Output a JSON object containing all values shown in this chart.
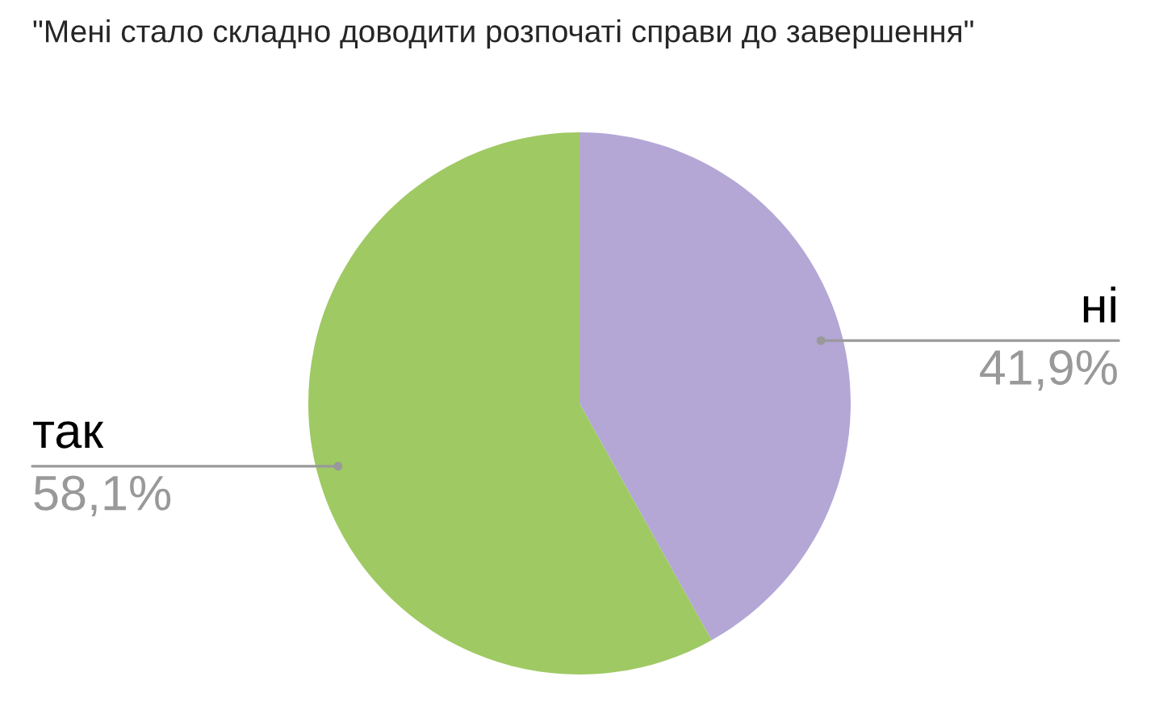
{
  "chart_data": {
    "type": "pie",
    "title": "\"Мені стало складно доводити розпочаті справи до завершення\"",
    "categories": [
      "ні",
      "так"
    ],
    "values": [
      41.9,
      58.1
    ],
    "colors": [
      "#b4a7d6",
      "#9fc963"
    ],
    "value_labels": [
      "41,9%",
      "58,1%"
    ]
  }
}
